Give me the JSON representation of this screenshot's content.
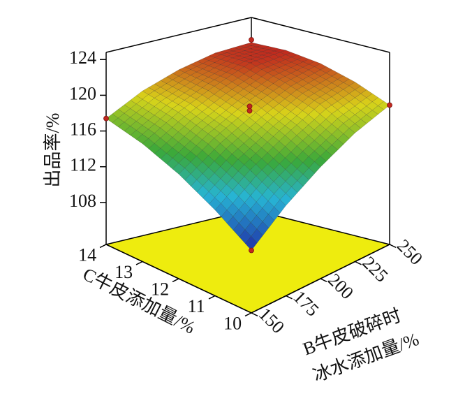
{
  "chart_data": {
    "type": "surface3d",
    "z_label": "出品率/%",
    "x_label": "C牛皮添加量/%",
    "y_label": [
      "B牛皮破碎时",
      "冰水添加量/%"
    ],
    "x": [
      10,
      11,
      12,
      13,
      14
    ],
    "y": [
      150,
      175,
      200,
      225,
      250
    ],
    "z": [
      [
        110.3,
        113.4,
        115.8,
        117.7,
        118.9
      ],
      [
        112.9,
        115.7,
        117.9,
        119.7,
        120.5
      ],
      [
        115.0,
        117.6,
        119.5,
        120.9,
        121.6
      ],
      [
        116.5,
        118.8,
        120.5,
        121.9,
        122.1
      ],
      [
        117.4,
        119.5,
        120.9,
        121.8,
        122.0
      ]
    ],
    "xlim": [
      10,
      14
    ],
    "ylim": [
      150,
      250
    ],
    "zlim": [
      103.3,
      124.8
    ],
    "xticks": [
      10,
      11,
      12,
      13,
      14
    ],
    "yticks": [
      150,
      175,
      200,
      225,
      250
    ],
    "zticks": [
      108,
      112,
      116,
      120,
      124
    ],
    "floor_color": "#eeec0e",
    "points": {
      "color": "#c0281e",
      "x": [
        14,
        14,
        12,
        12,
        10,
        10
      ],
      "y": [
        150,
        250,
        200,
        200,
        250,
        150
      ],
      "z": [
        117.4,
        122.3,
        119.7,
        119.2,
        118.9,
        110.3
      ]
    }
  }
}
